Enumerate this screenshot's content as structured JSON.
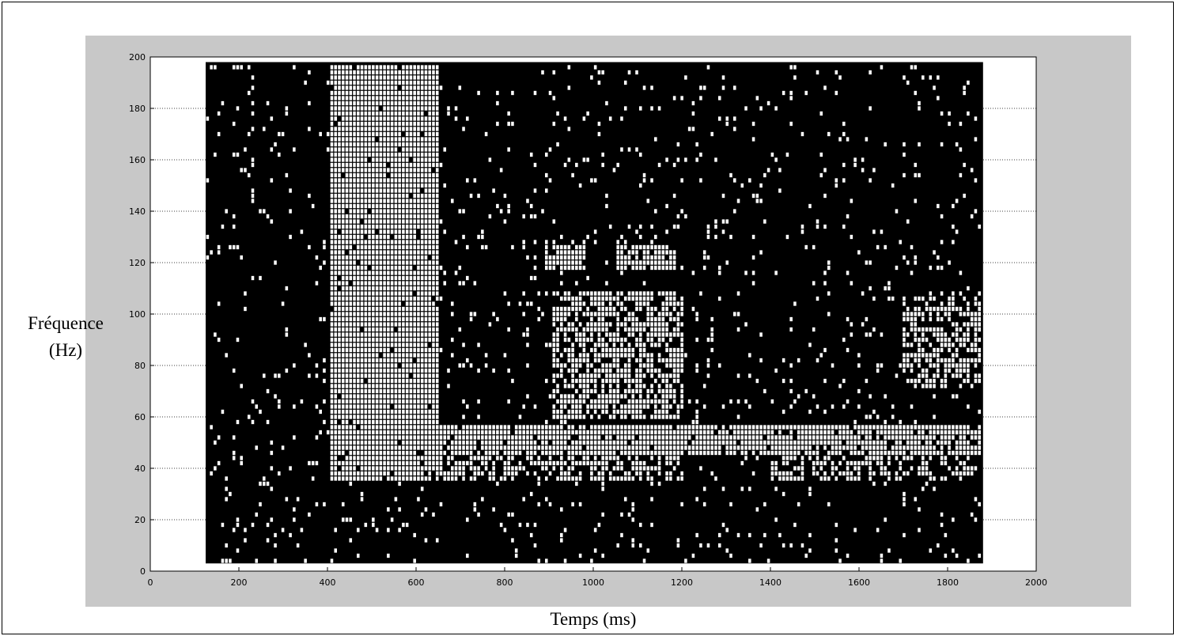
{
  "chart_data": {
    "type": "heatmap",
    "xlabel": "Temps (ms)",
    "ylabel_line1": "Fréquence",
    "ylabel_line2": "(Hz)",
    "xlim": [
      0,
      2000
    ],
    "ylim": [
      0,
      200
    ],
    "xticks": [
      0,
      200,
      400,
      600,
      800,
      1000,
      1200,
      1400,
      1600,
      1800,
      2000
    ],
    "yticks": [
      0,
      20,
      40,
      60,
      80,
      100,
      120,
      140,
      160,
      180,
      200
    ],
    "grid": "dotted",
    "colors": {
      "background": "#000000",
      "foreground": "#ffffff",
      "figure": "#c8c8c8"
    },
    "data_extent": {
      "x": [
        125,
        1880
      ],
      "y": [
        3,
        198
      ]
    },
    "cell_size": {
      "time_ms": 8.5,
      "freq_hz": 2
    },
    "regions": [
      {
        "name": "broadband-burst",
        "t": [
          400,
          650
        ],
        "f": [
          35,
          198
        ],
        "density": 0.97
      },
      {
        "name": "burst-upper-scatter",
        "t": [
          400,
          650
        ],
        "f": [
          130,
          198
        ],
        "density": 0.55
      },
      {
        "name": "band-50hz",
        "t": [
          640,
          1880
        ],
        "f": [
          44,
          56
        ],
        "density": 0.9
      },
      {
        "name": "second-burst",
        "t": [
          900,
          1200
        ],
        "f": [
          58,
          108
        ],
        "density": 0.7
      },
      {
        "name": "blob-120-a",
        "t": [
          890,
          980
        ],
        "f": [
          116,
          126
        ],
        "density": 0.95
      },
      {
        "name": "blob-120-b",
        "t": [
          1050,
          1180
        ],
        "f": [
          116,
          126
        ],
        "density": 0.9
      },
      {
        "name": "low-band",
        "t": [
          640,
          1200
        ],
        "f": [
          34,
          46
        ],
        "density": 0.55
      },
      {
        "name": "late-activity",
        "t": [
          1690,
          1880
        ],
        "f": [
          70,
          106
        ],
        "density": 0.6
      },
      {
        "name": "late-lower",
        "t": [
          1400,
          1880
        ],
        "f": [
          34,
          44
        ],
        "density": 0.5
      },
      {
        "name": "background-noise",
        "t": [
          125,
          1880
        ],
        "f": [
          3,
          198
        ],
        "density": 0.06
      }
    ]
  }
}
